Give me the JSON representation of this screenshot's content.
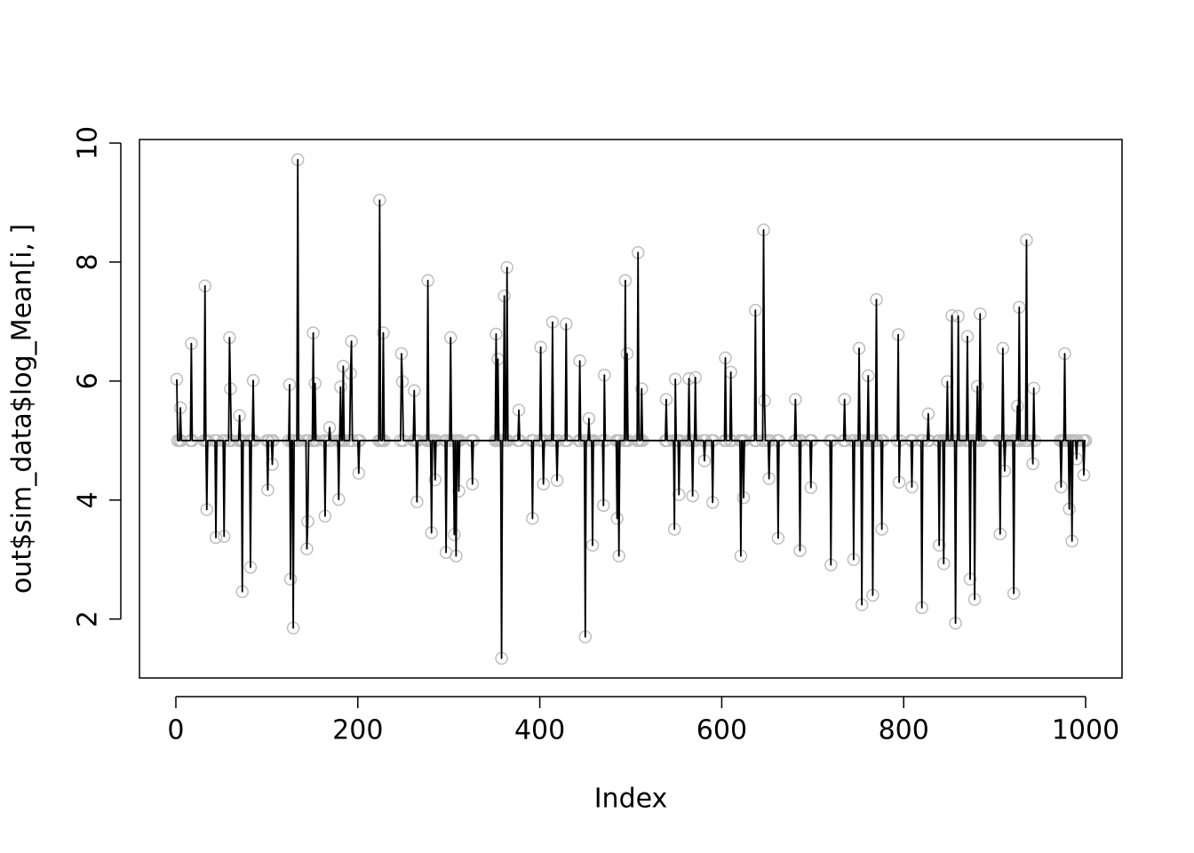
{
  "chart_data": {
    "type": "line",
    "xlabel": "Index",
    "ylabel": "out$sim_data$log_Mean[i, ]",
    "line_color": "#000000",
    "marker_color": "#bebebe",
    "xlim": [
      -40,
      1040
    ],
    "ylim": [
      1.01,
      10.06
    ],
    "xticks": [
      0,
      200,
      400,
      600,
      800,
      1000
    ],
    "yticks": [
      2,
      4,
      6,
      8,
      10
    ],
    "x": [
      1,
      2,
      4,
      5,
      6,
      16,
      17,
      18,
      31,
      32,
      33,
      34,
      35,
      43,
      44,
      45,
      52,
      53,
      54,
      58,
      59,
      60,
      61,
      69,
      70,
      71,
      72,
      73,
      74,
      81,
      82,
      83,
      84,
      85,
      86,
      100,
      101,
      102,
      105,
      106,
      107,
      124,
      125,
      126,
      127,
      128,
      129,
      130,
      133,
      134,
      135,
      143,
      144,
      145,
      146,
      150,
      151,
      152,
      153,
      154,
      163,
      164,
      165,
      168,
      169,
      170,
      178,
      179,
      180,
      181,
      182,
      183,
      184,
      185,
      191,
      192,
      193,
      194,
      200,
      201,
      202,
      223,
      224,
      225,
      227,
      228,
      229,
      247,
      248,
      249,
      250,
      261,
      262,
      263,
      264,
      265,
      266,
      276,
      277,
      278,
      280,
      281,
      282,
      284,
      285,
      286,
      296,
      297,
      298,
      301,
      302,
      303,
      305,
      306,
      307,
      308,
      309,
      310,
      311,
      312,
      325,
      326,
      327,
      351,
      352,
      353,
      354,
      355,
      357,
      358,
      359,
      360,
      361,
      362,
      363,
      364,
      365,
      376,
      377,
      378,
      391,
      392,
      393,
      400,
      401,
      402,
      403,
      404,
      405,
      413,
      414,
      415,
      418,
      419,
      420,
      428,
      429,
      430,
      443,
      444,
      445,
      449,
      450,
      451,
      453,
      454,
      455,
      457,
      458,
      459,
      469,
      470,
      471,
      472,
      484,
      485,
      486,
      487,
      488,
      493,
      494,
      495,
      496,
      497,
      507,
      508,
      509,
      511,
      512,
      513,
      538,
      539,
      540,
      547,
      548,
      549,
      550,
      552,
      553,
      554,
      563,
      564,
      565,
      567,
      568,
      569,
      570,
      571,
      572,
      580,
      581,
      582,
      589,
      590,
      591,
      603,
      604,
      605,
      609,
      610,
      611,
      620,
      621,
      622,
      623,
      624,
      625,
      636,
      637,
      638,
      645,
      646,
      647,
      648,
      651,
      652,
      653,
      661,
      662,
      663,
      680,
      681,
      682,
      685,
      686,
      687,
      697,
      698,
      699,
      719,
      720,
      721,
      734,
      735,
      736,
      744,
      745,
      746,
      750,
      751,
      752,
      753,
      754,
      755,
      760,
      761,
      762,
      765,
      766,
      767,
      769,
      770,
      771,
      775,
      776,
      777,
      793,
      794,
      795,
      796,
      808,
      809,
      810,
      819,
      820,
      821,
      826,
      827,
      828,
      838,
      839,
      840,
      843,
      844,
      845,
      847,
      848,
      849,
      852,
      853,
      854,
      856,
      857,
      858,
      859,
      860,
      861,
      869,
      870,
      871,
      872,
      873,
      874,
      877,
      878,
      879,
      880,
      881,
      882,
      883,
      884,
      885,
      905,
      906,
      907,
      908,
      909,
      910,
      911,
      912,
      920,
      921,
      922,
      924,
      925,
      926,
      927,
      928,
      934,
      935,
      936,
      941,
      942,
      943,
      944,
      972,
      973,
      974,
      976,
      977,
      978,
      981,
      982,
      983,
      984,
      985,
      986,
      989,
      990,
      991,
      997,
      998,
      999,
      1000
    ],
    "values": [
      6.03,
      5,
      5,
      5.55,
      5,
      5,
      6.63,
      5,
      5,
      7.6,
      5,
      3.84,
      5,
      5,
      3.37,
      5,
      5,
      3.39,
      5,
      5,
      6.73,
      5.87,
      5,
      5,
      5.42,
      5,
      5,
      2.46,
      5,
      5,
      2.87,
      5,
      5,
      6.01,
      5,
      5,
      4.17,
      5,
      5,
      4.6,
      5,
      5,
      5.94,
      2.67,
      5,
      5,
      1.85,
      5,
      5,
      9.72,
      5,
      5,
      3.18,
      3.64,
      5,
      5,
      6.81,
      5,
      5.96,
      5,
      5,
      3.73,
      5,
      5,
      5.22,
      5,
      5,
      4.01,
      5,
      5.9,
      5,
      5,
      6.25,
      5,
      5,
      6.13,
      6.67,
      5,
      5,
      4.45,
      5,
      5,
      9.04,
      5,
      5,
      6.81,
      5,
      5,
      6.46,
      5.99,
      5,
      5,
      5.84,
      5,
      5,
      3.97,
      5,
      5,
      7.69,
      5,
      5,
      3.45,
      5,
      5,
      4.34,
      5,
      5,
      3.12,
      5,
      5,
      6.73,
      5,
      5,
      3.42,
      5,
      3.06,
      5,
      5,
      4.15,
      5,
      5,
      4.27,
      5,
      5,
      6.79,
      5,
      6.37,
      5,
      5,
      1.34,
      5,
      5,
      7.43,
      5,
      5,
      7.91,
      5,
      5,
      5.51,
      5,
      5,
      3.69,
      5,
      5,
      6.57,
      5,
      5,
      4.27,
      5,
      5,
      6.99,
      5,
      5,
      4.33,
      5,
      5,
      6.96,
      5,
      5,
      6.34,
      5,
      5,
      1.7,
      5,
      5,
      5.37,
      5,
      5,
      3.24,
      5,
      5,
      3.91,
      6.1,
      5,
      5,
      3.69,
      5,
      3.06,
      5,
      5,
      7.69,
      5,
      6.46,
      5,
      5,
      8.16,
      5,
      5,
      5.87,
      5,
      5,
      5.69,
      5,
      5,
      3.51,
      6.03,
      5,
      5,
      4.09,
      5,
      5,
      6.04,
      5,
      5,
      4.07,
      5,
      5,
      6.06,
      5,
      5,
      4.66,
      5,
      5,
      3.96,
      5,
      5,
      6.39,
      5,
      5,
      6.15,
      5,
      5,
      3.06,
      5,
      5,
      4.04,
      5,
      5,
      7.19,
      5,
      5,
      8.54,
      5.67,
      5,
      5,
      4.36,
      5,
      5,
      3.36,
      5,
      5,
      5.69,
      5,
      5,
      3.15,
      5,
      5,
      4.21,
      5,
      5,
      2.91,
      5,
      5,
      5.69,
      5,
      5,
      3,
      5,
      5,
      6.55,
      5,
      5,
      2.24,
      5,
      5,
      6.09,
      5,
      5,
      2.4,
      5,
      5,
      7.37,
      5,
      5,
      3.51,
      5,
      5,
      6.78,
      4.3,
      5,
      5,
      4.22,
      5,
      5,
      2.19,
      5,
      5,
      5.45,
      5,
      5,
      3.24,
      5,
      5,
      2.93,
      5,
      5,
      5.99,
      5,
      5,
      7.1,
      5,
      5,
      1.93,
      5,
      5,
      7.09,
      5,
      5,
      6.75,
      5,
      5,
      2.67,
      5,
      5,
      2.33,
      5,
      5,
      5.91,
      5,
      5,
      7.13,
      5,
      5,
      3.43,
      5,
      5,
      6.55,
      5,
      4.49,
      5,
      5,
      2.43,
      5,
      5,
      5.58,
      5,
      7.24,
      5,
      5,
      8.37,
      5,
      5,
      4.61,
      5.88,
      5,
      5,
      4.22,
      5,
      5,
      6.46,
      5,
      5,
      3.85,
      5,
      5,
      3.31,
      5,
      5,
      4.69,
      5,
      5,
      4.42,
      5,
      5
    ]
  }
}
